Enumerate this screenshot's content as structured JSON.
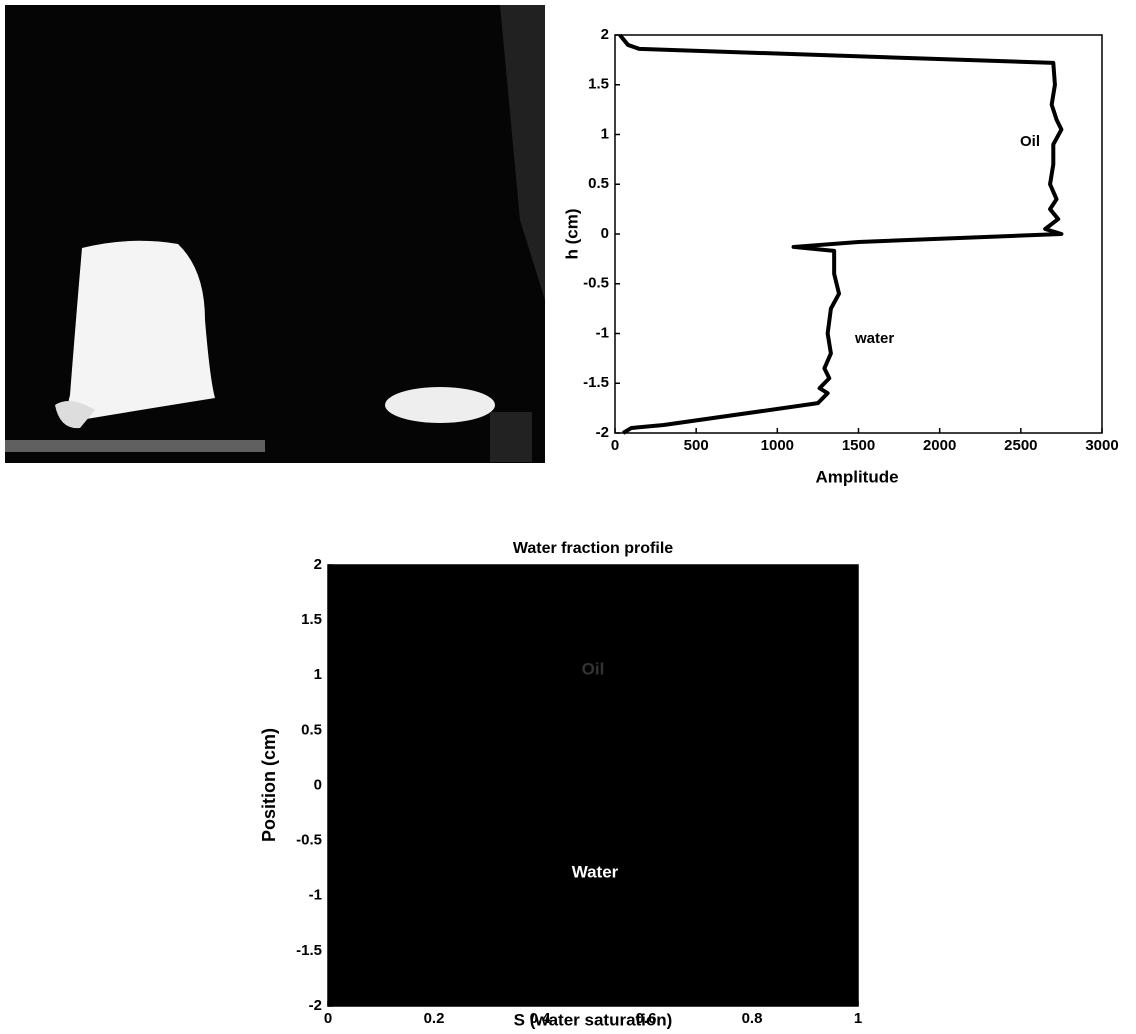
{
  "chart_data": [
    {
      "type": "line",
      "ylabel": "h (cm)",
      "xlabel": "Amplitude",
      "annotations": [
        "Oil",
        "water"
      ],
      "xlim": [
        0,
        3000
      ],
      "xticks": [
        0,
        500,
        1000,
        1500,
        2000,
        2500,
        3000
      ],
      "ylim": [
        -2,
        2
      ],
      "yticks": [
        -2,
        -1.5,
        -1,
        -0.5,
        0,
        0.5,
        1,
        1.5,
        2
      ],
      "series": [
        {
          "color": "#000000",
          "x": [
            30,
            80,
            150,
            2700,
            2710,
            2690,
            2720,
            2750,
            2700,
            2700,
            2680,
            2720,
            2680,
            2730,
            2650,
            2750,
            1500,
            1100,
            1350,
            1350,
            1380,
            1330,
            1310,
            1330,
            1290,
            1320,
            1260,
            1310,
            1250,
            300,
            100,
            50
          ],
          "values": [
            2,
            1.9,
            1.86,
            1.72,
            1.5,
            1.3,
            1.15,
            1.05,
            0.9,
            0.7,
            0.5,
            0.35,
            0.25,
            0.15,
            0.05,
            0,
            -0.08,
            -0.13,
            -0.17,
            -0.4,
            -0.6,
            -0.75,
            -1,
            -1.2,
            -1.35,
            -1.45,
            -1.55,
            -1.6,
            -1.7,
            -1.92,
            -1.95,
            -2
          ]
        }
      ]
    },
    {
      "type": "line",
      "title": "Water fraction profile",
      "xlabel": "S (water saturation)",
      "ylabel": "Position (cm)",
      "annotations": [
        "Oil",
        "Water"
      ],
      "plot_background": "#000000",
      "xlim": [
        0,
        1
      ],
      "xticks": [
        0,
        0.2,
        0.4,
        0.6,
        0.8,
        1
      ],
      "ylim": [
        -2,
        2
      ],
      "yticks": [
        -2,
        -1.5,
        -1,
        -0.5,
        0,
        0.5,
        1,
        1.5,
        2
      ],
      "series": []
    }
  ]
}
